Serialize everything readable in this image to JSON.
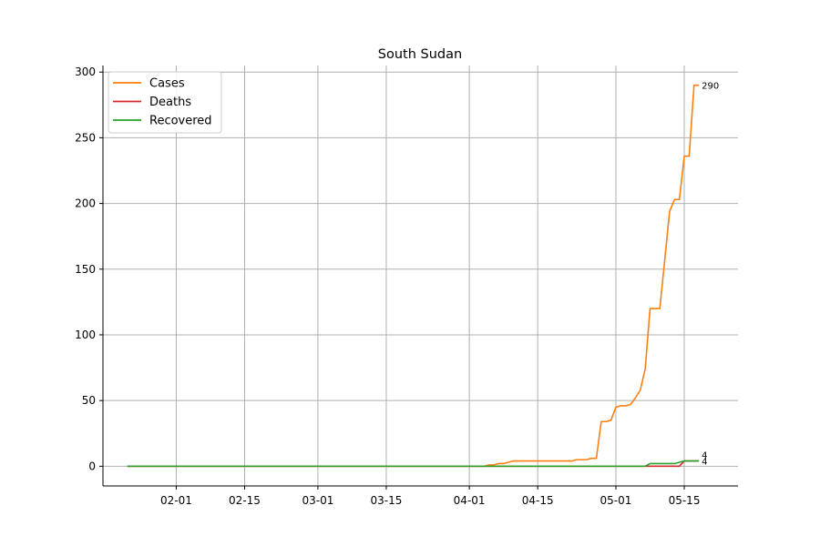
{
  "chart_data": {
    "type": "line",
    "title": "South Sudan",
    "xlabel": "",
    "ylabel": "",
    "x_start": "2020-01-22",
    "x_end": "2020-05-18",
    "xlim": [
      "2020-01-17",
      "2020-05-26"
    ],
    "ylim": [
      -15,
      305
    ],
    "x_ticks": [
      {
        "date": "2020-02-01",
        "label": "02-01"
      },
      {
        "date": "2020-02-15",
        "label": "02-15"
      },
      {
        "date": "2020-03-01",
        "label": "03-01"
      },
      {
        "date": "2020-03-15",
        "label": "03-15"
      },
      {
        "date": "2020-04-01",
        "label": "04-01"
      },
      {
        "date": "2020-04-15",
        "label": "04-15"
      },
      {
        "date": "2020-05-01",
        "label": "05-01"
      },
      {
        "date": "2020-05-15",
        "label": "05-15"
      }
    ],
    "y_ticks": [
      0,
      50,
      100,
      150,
      200,
      250,
      300
    ],
    "grid": true,
    "legend_position": "top-left",
    "series": [
      {
        "name": "Cases",
        "color": "#ff7f0e",
        "points": [
          [
            "2020-01-22",
            0
          ],
          [
            "2020-04-04",
            0
          ],
          [
            "2020-04-05",
            1
          ],
          [
            "2020-04-06",
            1
          ],
          [
            "2020-04-07",
            2
          ],
          [
            "2020-04-08",
            2
          ],
          [
            "2020-04-09",
            3
          ],
          [
            "2020-04-10",
            4
          ],
          [
            "2020-04-22",
            4
          ],
          [
            "2020-04-23",
            5
          ],
          [
            "2020-04-25",
            5
          ],
          [
            "2020-04-26",
            6
          ],
          [
            "2020-04-27",
            6
          ],
          [
            "2020-04-28",
            34
          ],
          [
            "2020-04-29",
            34
          ],
          [
            "2020-04-30",
            35
          ],
          [
            "2020-05-01",
            45
          ],
          [
            "2020-05-02",
            46
          ],
          [
            "2020-05-03",
            46
          ],
          [
            "2020-05-04",
            47
          ],
          [
            "2020-05-05",
            52
          ],
          [
            "2020-05-06",
            58
          ],
          [
            "2020-05-07",
            74
          ],
          [
            "2020-05-08",
            120
          ],
          [
            "2020-05-10",
            120
          ],
          [
            "2020-05-12",
            194
          ],
          [
            "2020-05-13",
            203
          ],
          [
            "2020-05-14",
            203
          ],
          [
            "2020-05-15",
            236
          ],
          [
            "2020-05-16",
            236
          ],
          [
            "2020-05-17",
            290
          ],
          [
            "2020-05-18",
            290
          ]
        ],
        "last_label": "290"
      },
      {
        "name": "Deaths",
        "color": "#d62728",
        "points": [
          [
            "2020-01-22",
            0
          ],
          [
            "2020-05-14",
            0
          ],
          [
            "2020-05-15",
            4
          ],
          [
            "2020-05-18",
            4
          ]
        ],
        "last_label": "4"
      },
      {
        "name": "Recovered",
        "color": "#2ca02c",
        "points": [
          [
            "2020-01-22",
            0
          ],
          [
            "2020-05-07",
            0
          ],
          [
            "2020-05-08",
            2
          ],
          [
            "2020-05-13",
            2
          ],
          [
            "2020-05-14",
            3
          ],
          [
            "2020-05-15",
            4
          ],
          [
            "2020-05-18",
            4
          ]
        ],
        "last_label": "4"
      }
    ]
  }
}
